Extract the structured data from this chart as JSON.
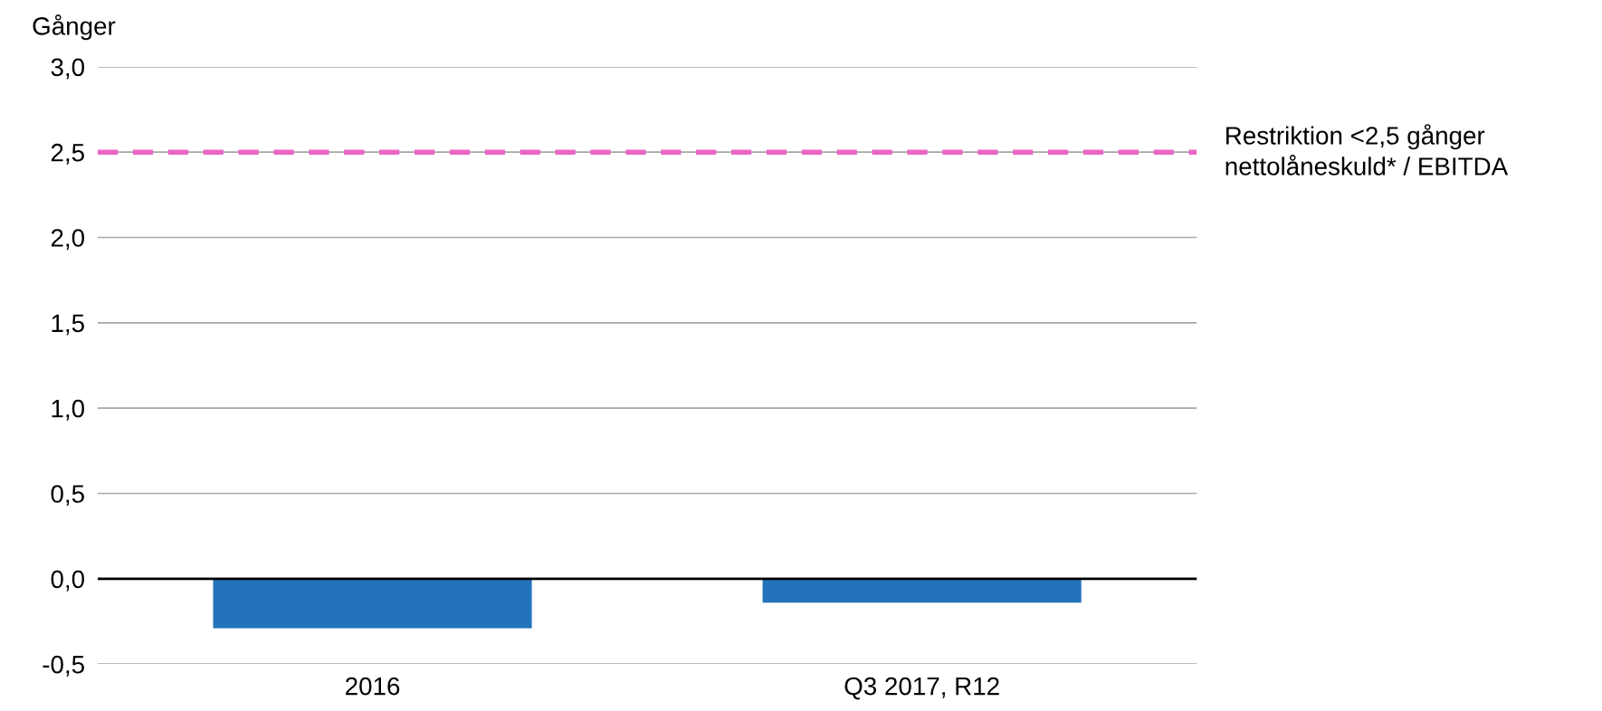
{
  "chart_data": {
    "type": "bar",
    "ylabel": "Gånger",
    "categories": [
      "2016",
      "Q3 2017, R12"
    ],
    "values": [
      -0.29,
      -0.14
    ],
    "color": "#2373bb",
    "ylim": [
      -0.5,
      3.0
    ],
    "yticks": [
      {
        "value": -0.5,
        "label": "-0,5"
      },
      {
        "value": 0,
        "label": "0,0"
      },
      {
        "value": 0.5,
        "label": "0,5"
      },
      {
        "value": 1.0,
        "label": "1,0"
      },
      {
        "value": 1.5,
        "label": "1,5"
      },
      {
        "value": 2.0,
        "label": "2,0"
      },
      {
        "value": 2.5,
        "label": "2,5"
      },
      {
        "value": 3.0,
        "label": "3,0"
      }
    ],
    "grid": "y",
    "ref_lines": [
      {
        "axis": "y",
        "value": 2.5,
        "label": "Restriktion <2,5 gånger\nnettolåneskuld* / EBITDA",
        "color": "#ea66c4",
        "line_style": "dashed"
      }
    ]
  }
}
